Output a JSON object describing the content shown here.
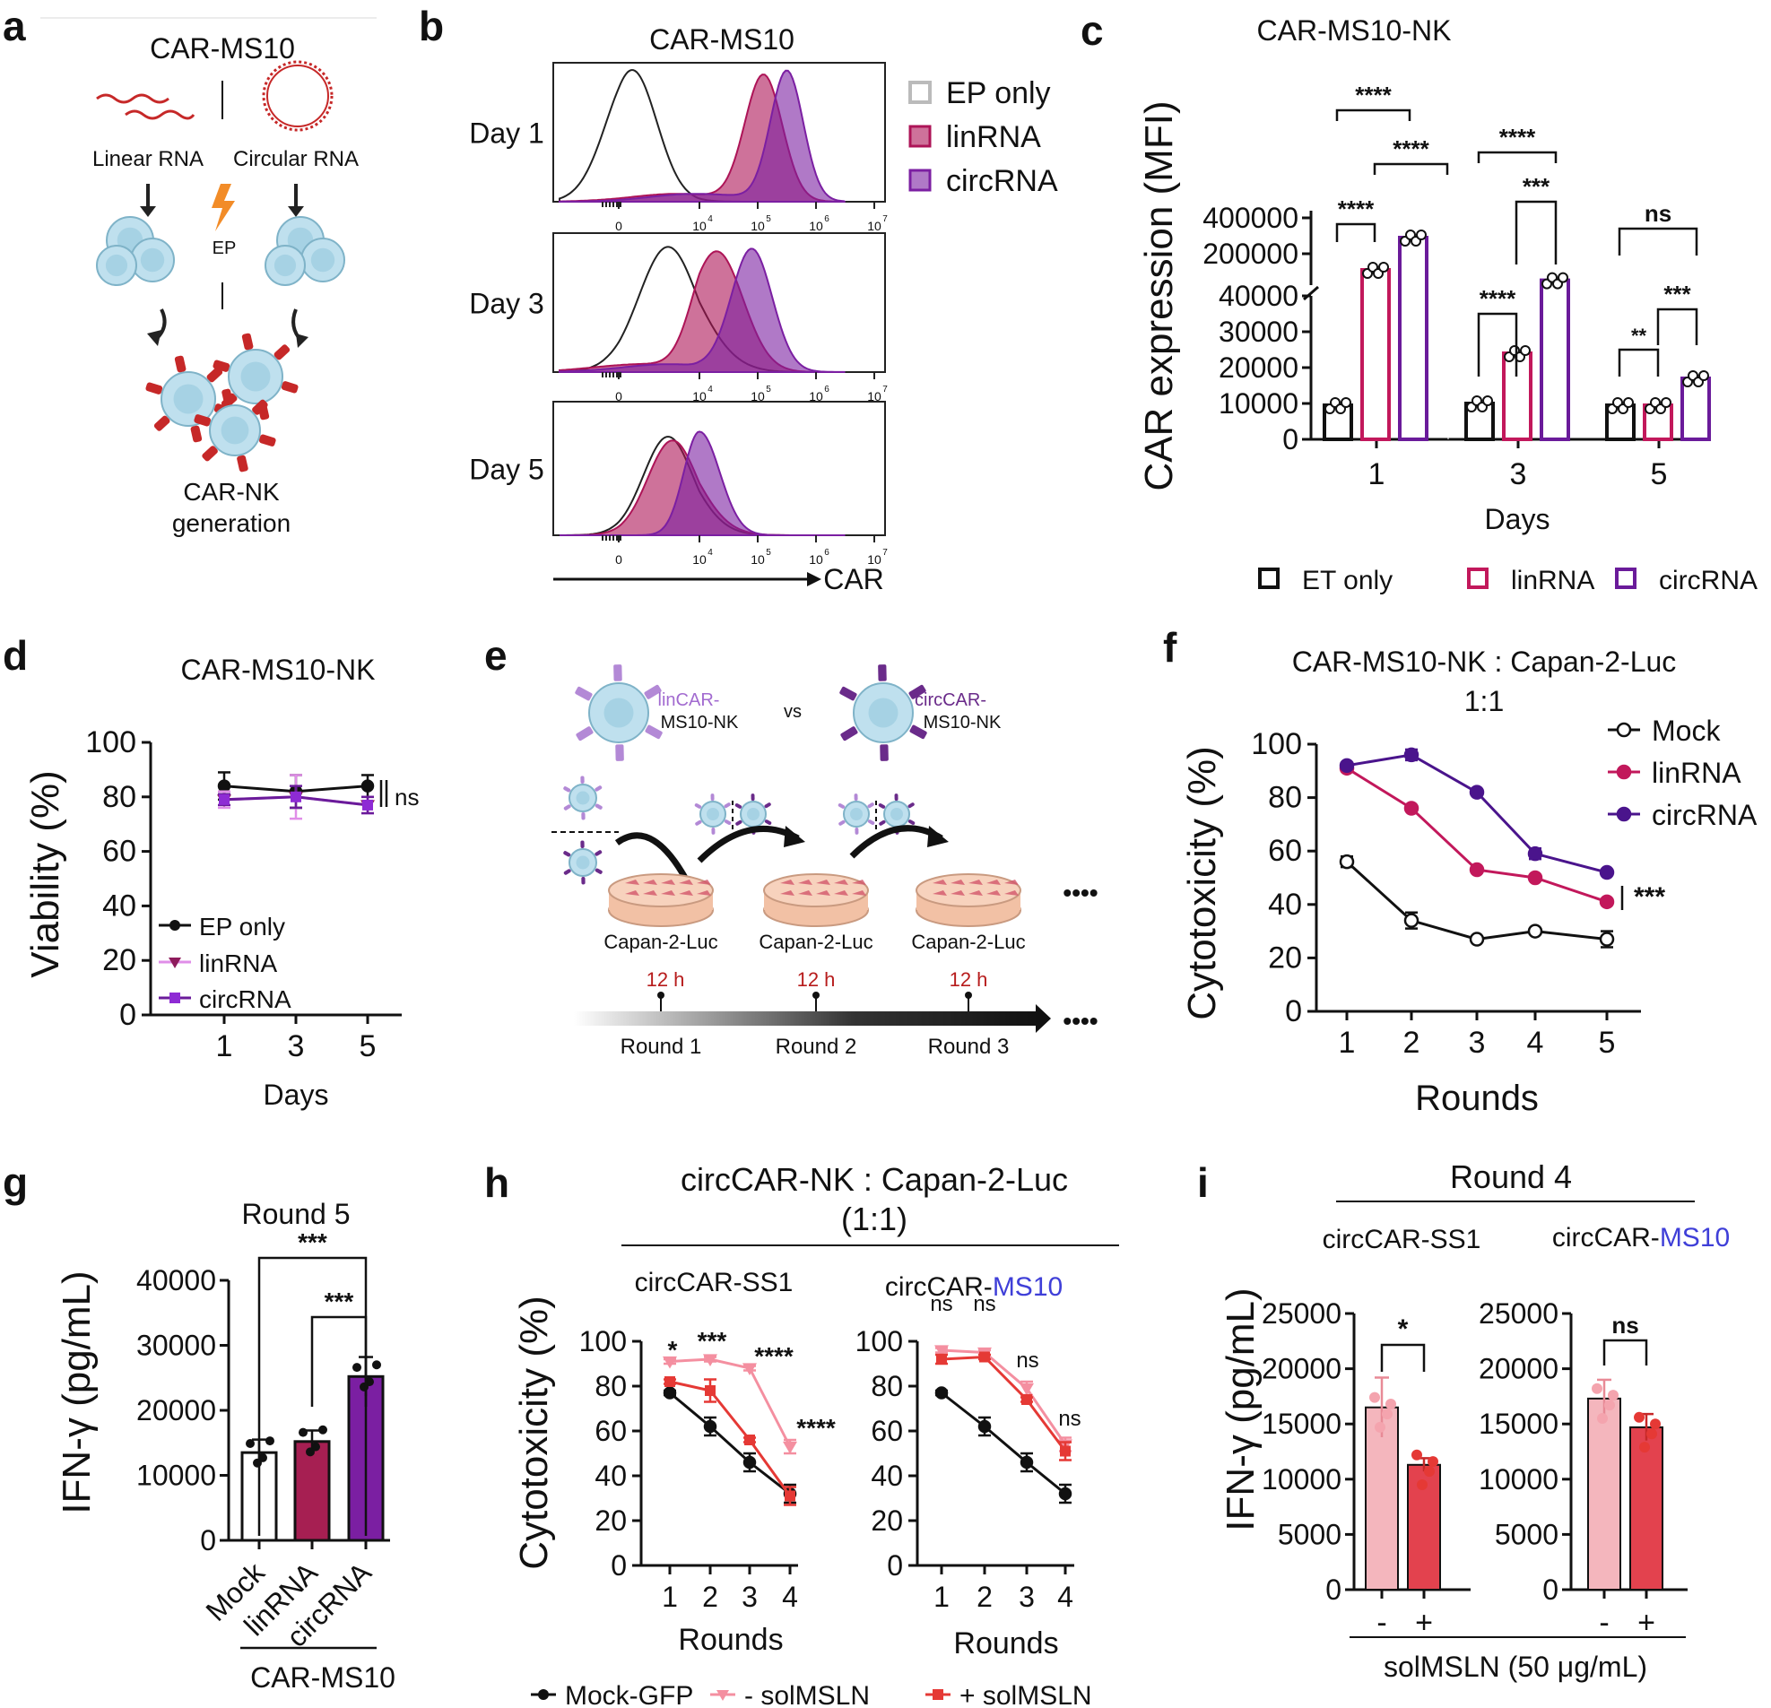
{
  "panels": [
    {
      "letter": "a",
      "title": "CAR-MS10",
      "labels": [
        "Linear RNA",
        "Circular RNA",
        "EP",
        "CAR-NK",
        "generation"
      ]
    },
    {
      "letter": "b",
      "title": "CAR-MS10",
      "days": [
        "Day 1",
        "Day 3",
        "Day 5"
      ],
      "axis_label": "CAR",
      "tick_labels": [
        "0",
        "10",
        "10",
        "10",
        "10"
      ],
      "tick_exps": [
        "4",
        "5",
        "6",
        "7"
      ],
      "legend": [
        "EP only",
        "linRNA",
        "circRNA"
      ]
    },
    {
      "letter": "c",
      "title": "CAR-MS10-NK",
      "legend": [
        "ET only",
        "linRNA",
        "circRNA"
      ],
      "sig": [
        "****",
        "****",
        "****",
        "****",
        "***",
        "****",
        "ns",
        "***",
        "**"
      ]
    },
    {
      "letter": "d",
      "title": "CAR-MS10-NK",
      "legend": [
        "EP only",
        "linRNA",
        "circRNA"
      ],
      "sig": [
        "ns"
      ]
    },
    {
      "letter": "e",
      "labels": [
        "linCAR-",
        "MS10-NK",
        "vs",
        "circCAR-",
        "MS10-NK",
        "Capan-2-Luc",
        "Capan-2-Luc",
        "Capan-2-Luc",
        "12 h",
        "12 h",
        "12 h",
        "Round 1",
        "Round 2",
        "Round 3",
        "••••",
        "••••"
      ]
    },
    {
      "letter": "f",
      "title": "CAR-MS10-NK : Capan-2-Luc",
      "subtitle": "1:1",
      "legend": [
        "Mock",
        "linRNA",
        "circRNA"
      ],
      "sig": [
        "***"
      ]
    },
    {
      "letter": "g",
      "title": "Round 5",
      "group_label": "CAR-MS10",
      "sig": [
        "***",
        "***"
      ]
    },
    {
      "letter": "h",
      "title": "circCAR-NK : Capan-2-Luc",
      "subtitle": "(1:1)",
      "sub_a": "circCAR-SS1",
      "sub_b_prefix": "circCAR-",
      "sub_b_suffix": "MS10",
      "legend": [
        "Mock-GFP",
        "- solMSLN",
        "+ solMSLN"
      ],
      "sig_left": [
        "*",
        "***",
        "****",
        "****"
      ],
      "sig_right": [
        "ns",
        "ns",
        "ns",
        "ns"
      ]
    },
    {
      "letter": "i",
      "title": "Round 4",
      "sub_a": "circCAR-SS1",
      "sub_b_prefix": "circCAR-",
      "sub_b_suffix": "MS10",
      "xlabel": "solMSLN (50 μg/mL)",
      "sig": [
        "*",
        "ns"
      ]
    }
  ],
  "colors": {
    "ep": "#000000",
    "lin": "#c2185b",
    "circ": "#6a1b9a",
    "mock_h": "#111111",
    "minus": "#f48fa0",
    "plus": "#e53935",
    "ms10_blue": "#3f3fd8",
    "lin_fill": "#ad1457",
    "circ_fill": "#7b1fa2",
    "bar_i_minus": "#f4b6bd",
    "bar_i_plus": "#e3424e"
  },
  "chart_data": [
    {
      "id": "b",
      "type": "histogram",
      "title": "CAR-MS10",
      "xlabel": "CAR",
      "series": [
        {
          "name": "EP only",
          "peaks": {
            "Day 1": "~10^2.5",
            "Day 3": "~10^3.5",
            "Day 5": "~10^3.5"
          }
        },
        {
          "name": "linRNA",
          "peaks": {
            "Day 1": "~10^5.1",
            "Day 3": "~10^4.3",
            "Day 5": "~10^3.5"
          }
        },
        {
          "name": "circRNA",
          "peaks": {
            "Day 1": "~10^5.5",
            "Day 3": "~10^4.9",
            "Day 5": "~10^4"
          }
        }
      ]
    },
    {
      "id": "c",
      "type": "bar",
      "title": "CAR-MS10-NK",
      "xlabel": "Days",
      "ylabel": "CAR expression (MFI)",
      "categories": [
        "1",
        "3",
        "5"
      ],
      "yticks_lower": [
        "0",
        "10000",
        "20000",
        "30000",
        "40000"
      ],
      "yticks_upper": [
        "200000",
        "400000"
      ],
      "series": [
        {
          "name": "ET only",
          "values": [
            9500,
            10000,
            9500
          ]
        },
        {
          "name": "linRNA",
          "values": [
            110000,
            24000,
            9500
          ]
        },
        {
          "name": "circRNA",
          "values": [
            290000,
            52000,
            17000
          ]
        }
      ]
    },
    {
      "id": "d",
      "type": "line",
      "title": "CAR-MS10-NK",
      "xlabel": "Days",
      "ylabel": "Viability (%)",
      "x": [
        "1",
        "3",
        "5"
      ],
      "yticks": [
        "0",
        "20",
        "40",
        "60",
        "80",
        "100"
      ],
      "ylim": [
        0,
        100
      ],
      "series": [
        {
          "name": "EP only",
          "values": [
            84,
            82,
            84
          ],
          "err": [
            5,
            6,
            4
          ]
        },
        {
          "name": "linRNA",
          "values": [
            79,
            80,
            77
          ],
          "err": [
            3,
            8,
            3
          ]
        },
        {
          "name": "circRNA",
          "values": [
            79,
            80,
            77
          ],
          "err": [
            2,
            4,
            3
          ]
        }
      ]
    },
    {
      "id": "f",
      "type": "line",
      "title": "CAR-MS10-NK : Capan-2-Luc",
      "xlabel": "Rounds",
      "ylabel": "Cytotoxicity (%)",
      "x": [
        "1",
        "2",
        "3",
        "4",
        "5"
      ],
      "yticks": [
        "0",
        "20",
        "40",
        "60",
        "80",
        "100"
      ],
      "ylim": [
        0,
        100
      ],
      "series": [
        {
          "name": "Mock",
          "values": [
            56,
            34,
            27,
            30,
            27
          ],
          "err": [
            2,
            3,
            1,
            1,
            3
          ]
        },
        {
          "name": "linRNA",
          "values": [
            91,
            76,
            53,
            50,
            41
          ],
          "err": [
            1,
            1,
            1,
            1,
            1
          ]
        },
        {
          "name": "circRNA",
          "values": [
            92,
            96,
            82,
            59,
            52
          ],
          "err": [
            1,
            2,
            1,
            2,
            1
          ]
        }
      ]
    },
    {
      "id": "g",
      "type": "bar",
      "title": "Round 5",
      "ylabel": "IFN-γ (pg/mL)",
      "categories": [
        "Mock",
        "linRNA",
        "circRNA"
      ],
      "yticks": [
        "0",
        "10000",
        "20000",
        "30000",
        "40000"
      ],
      "ylim": [
        0,
        40000
      ],
      "values": [
        13500,
        15200,
        25200
      ],
      "err": [
        2000,
        1700,
        3000
      ]
    },
    {
      "id": "h1",
      "type": "line",
      "title": "circCAR-SS1",
      "xlabel": "Rounds",
      "ylabel": "Cytotoxicity (%)",
      "x": [
        "1",
        "2",
        "3",
        "4"
      ],
      "yticks": [
        "0",
        "20",
        "40",
        "60",
        "80",
        "100"
      ],
      "ylim": [
        0,
        100
      ],
      "series": [
        {
          "name": "Mock-GFP",
          "values": [
            77,
            62,
            46,
            32
          ],
          "err": [
            1,
            4,
            4,
            4
          ]
        },
        {
          "name": "- solMSLN",
          "values": [
            91,
            92,
            88,
            53
          ],
          "err": [
            1,
            1,
            1,
            3
          ]
        },
        {
          "name": "+ solMSLN",
          "values": [
            82,
            78,
            56,
            31
          ],
          "err": [
            1,
            5,
            1,
            4
          ]
        }
      ]
    },
    {
      "id": "h2",
      "type": "line",
      "title": "circCAR-MS10",
      "xlabel": "Rounds",
      "ylabel": "",
      "x": [
        "1",
        "2",
        "3",
        "4"
      ],
      "yticks": [
        "0",
        "20",
        "40",
        "60",
        "80",
        "100"
      ],
      "ylim": [
        0,
        100
      ],
      "series": [
        {
          "name": "Mock-GFP",
          "values": [
            77,
            62,
            46,
            32
          ],
          "err": [
            1,
            4,
            4,
            4
          ]
        },
        {
          "name": "- solMSLN",
          "values": [
            96,
            95,
            79,
            54
          ],
          "err": [
            1,
            1,
            3,
            3
          ]
        },
        {
          "name": "+ solMSLN",
          "values": [
            92,
            93,
            74,
            51
          ],
          "err": [
            2,
            1,
            1,
            4
          ]
        }
      ]
    },
    {
      "id": "i1",
      "type": "bar",
      "title": "circCAR-SS1",
      "ylabel": "IFN-γ (pg/mL)",
      "categories": [
        "-",
        "+"
      ],
      "yticks": [
        "0",
        "5000",
        "10000",
        "15000",
        "20000",
        "25000"
      ],
      "ylim": [
        0,
        25000
      ],
      "values": [
        16500,
        11300
      ],
      "err": [
        2700,
        600
      ]
    },
    {
      "id": "i2",
      "type": "bar",
      "title": "circCAR-MS10",
      "ylabel": "",
      "categories": [
        "-",
        "+"
      ],
      "yticks": [
        "0",
        "5000",
        "10000",
        "15000",
        "20000",
        "25000"
      ],
      "ylim": [
        0,
        25000
      ],
      "values": [
        17300,
        14700
      ],
      "err": [
        1700,
        1200
      ]
    }
  ]
}
